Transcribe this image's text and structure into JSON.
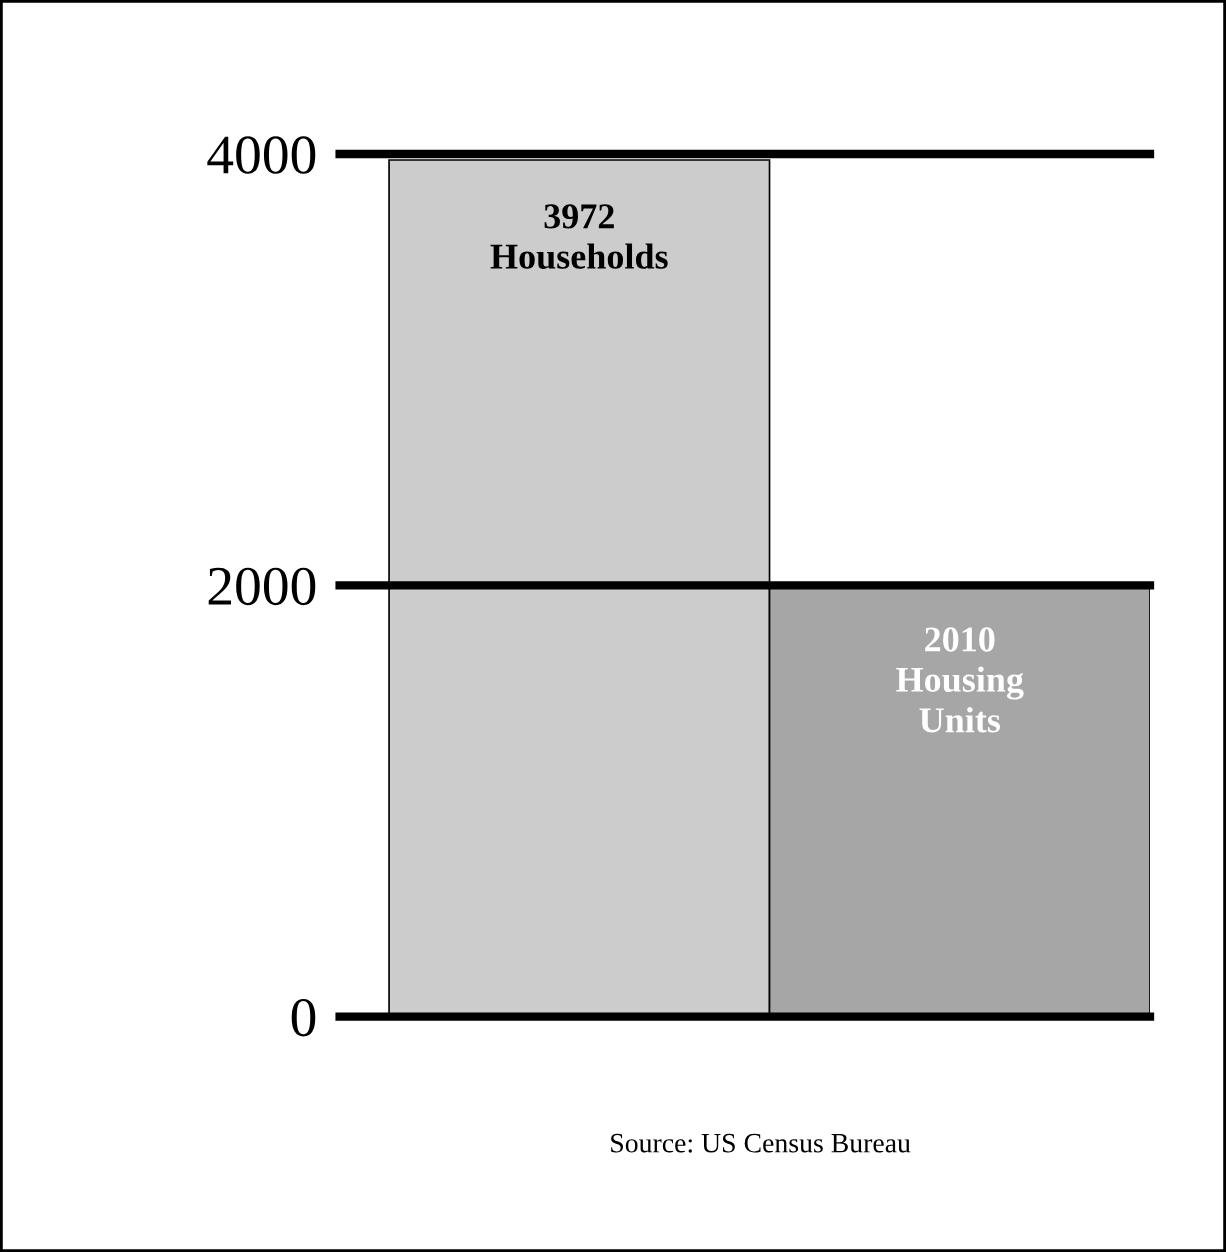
{
  "chart_data": {
    "type": "bar",
    "categories": [
      null,
      null
    ],
    "values": [
      3972,
      2010
    ],
    "colors": [
      "#cccccc",
      "#a6a6a6"
    ],
    "value_labels": [
      "3972\nHouseholds",
      "2010\nHousing\nUnits"
    ],
    "ylim": [
      0,
      4000
    ],
    "yticks": [
      0,
      2000,
      4000
    ],
    "grid": "y",
    "annotations": [
      "Source: US Census Bureau"
    ]
  }
}
